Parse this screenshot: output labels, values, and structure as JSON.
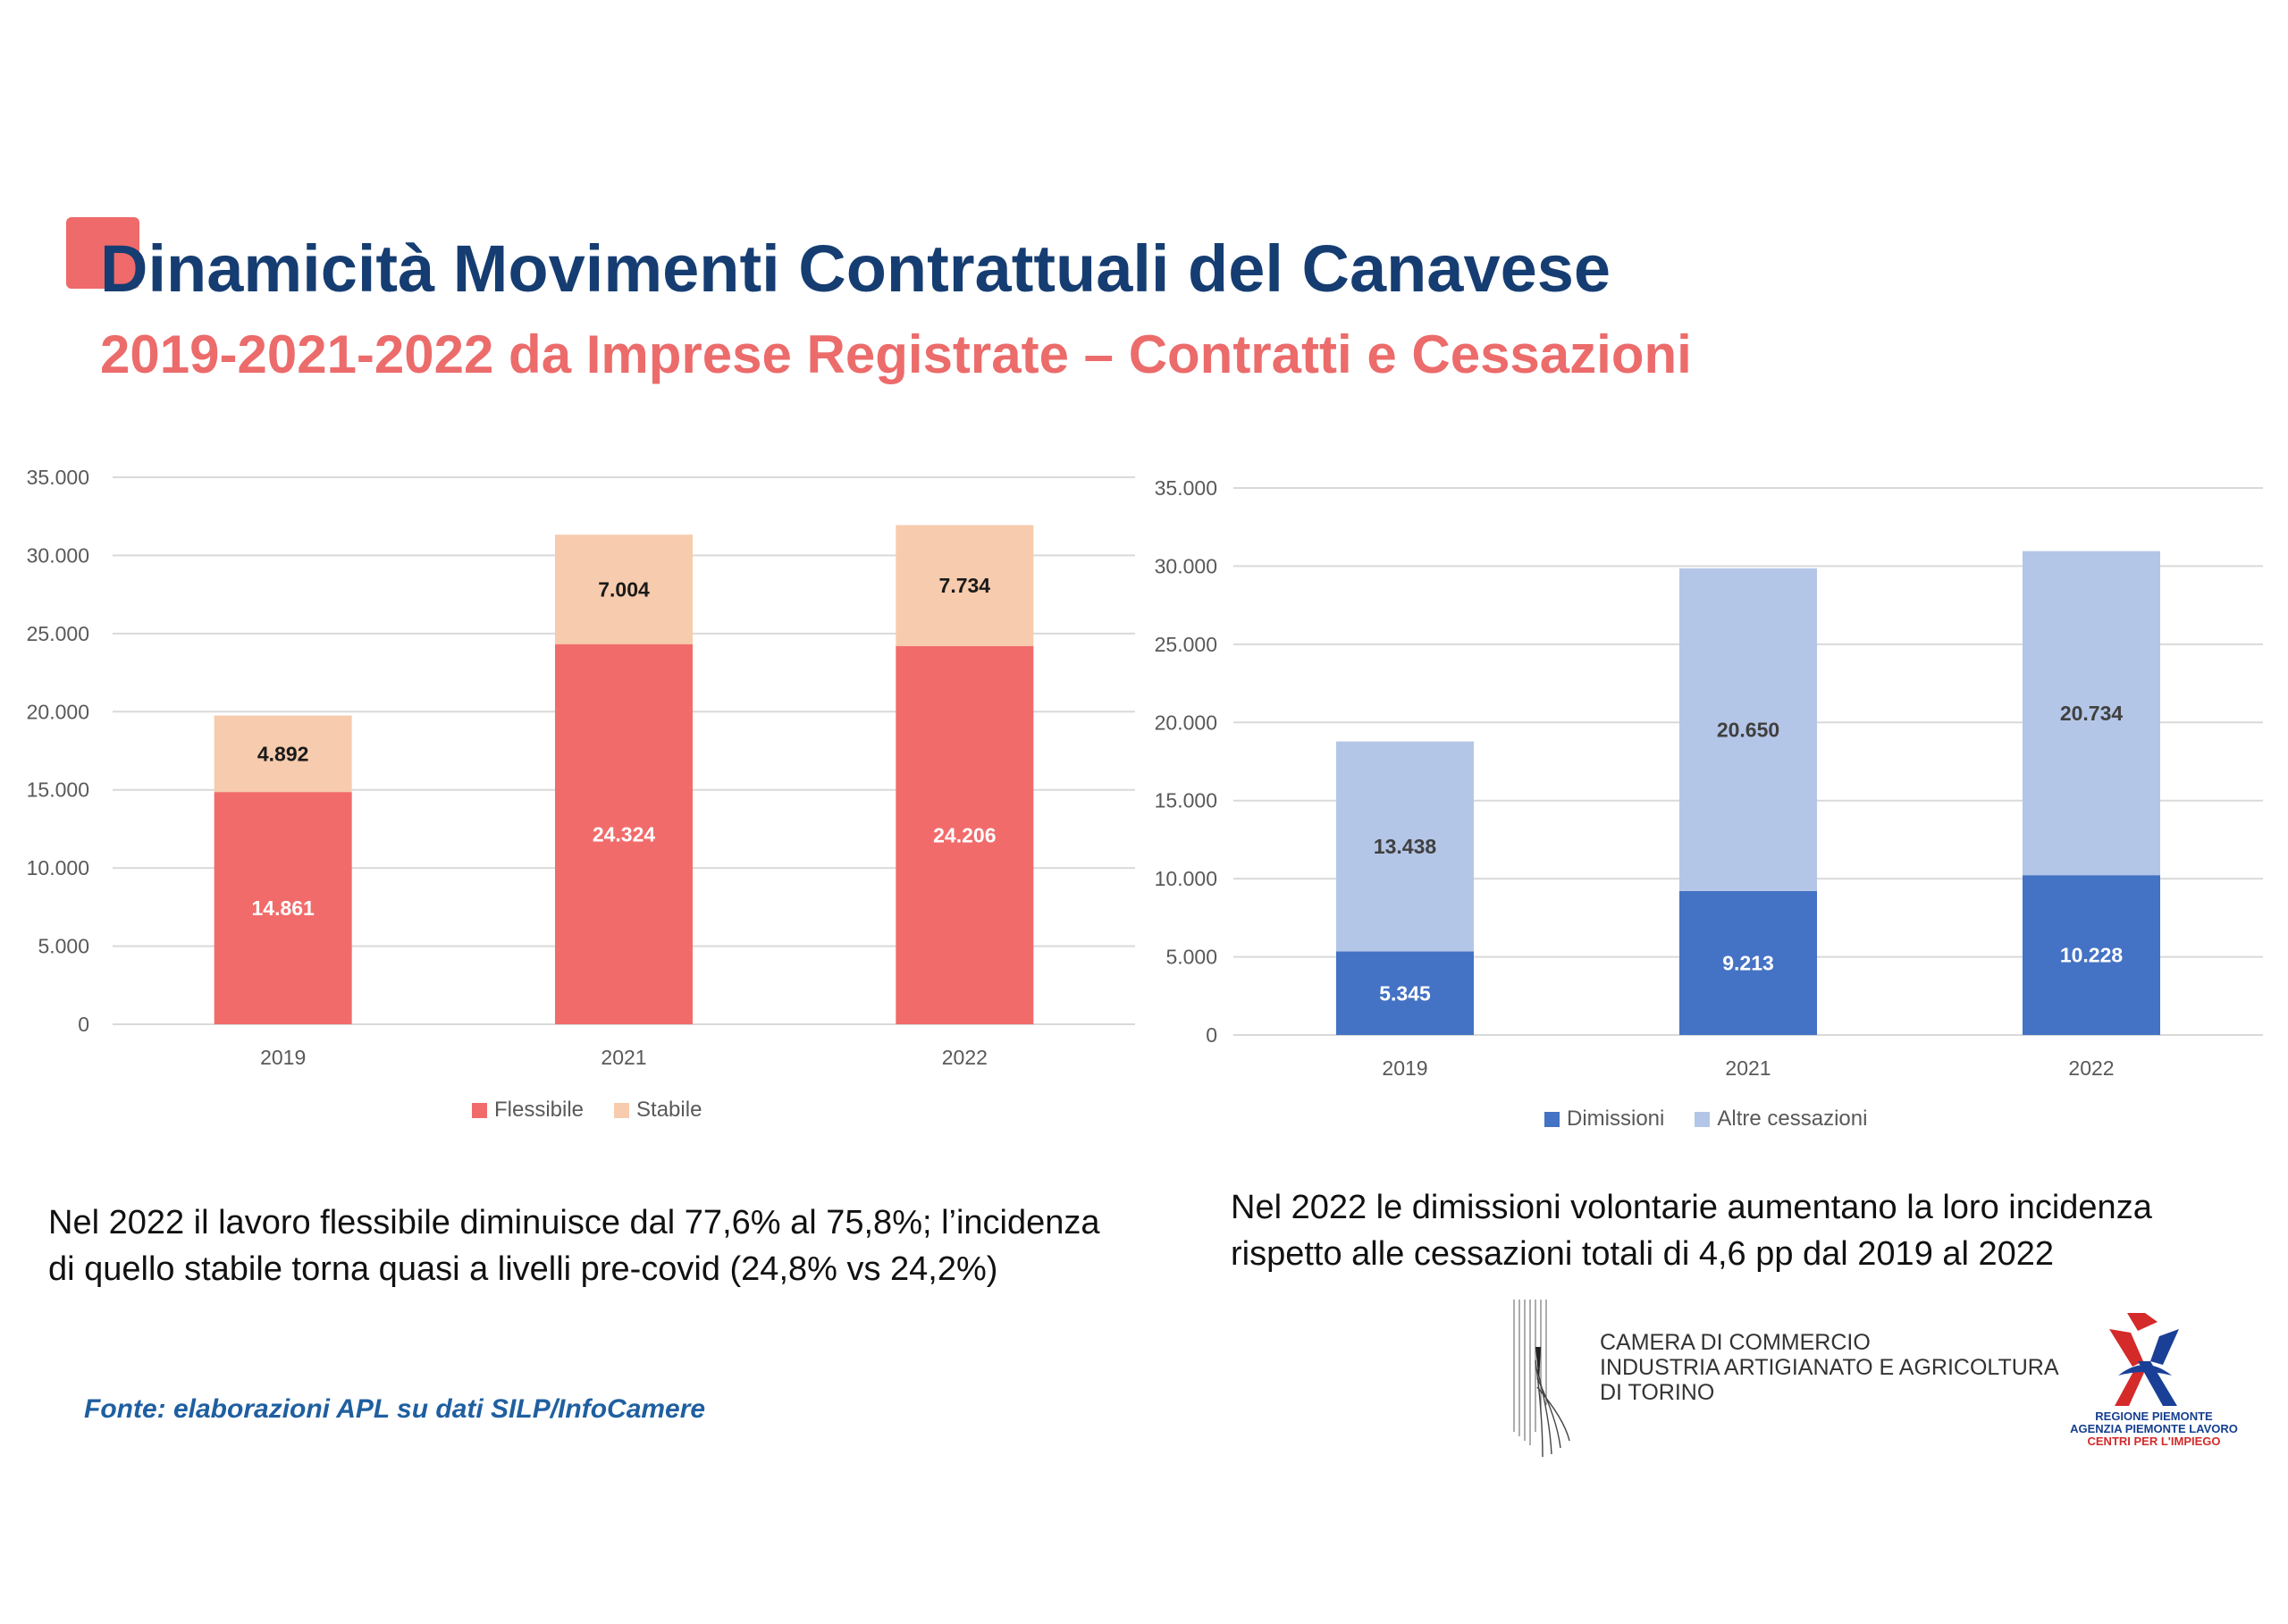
{
  "title": "Dinamicità Movimenti Contrattuali del Canavese",
  "subtitle": "2019-2021-2022 da Imprese Registrate – Contratti e Cessazioni",
  "colors": {
    "title": "#153d72",
    "subtitle": "#ec6b6b",
    "accent": "#ef6a6a",
    "flessibile": "#f26b6b",
    "stabile": "#f7cbad",
    "dimissioni": "#4472c4",
    "altre_cessazioni": "#b4c6e7",
    "source": "#1f5fa0"
  },
  "chart_data": [
    {
      "type": "bar",
      "stacked": true,
      "categories": [
        "2019",
        "2021",
        "2022"
      ],
      "series": [
        {
          "name": "Flessibile",
          "values": [
            14861,
            24324,
            24206
          ],
          "labels": [
            "14.861",
            "24.324",
            "24.206"
          ]
        },
        {
          "name": "Stabile",
          "values": [
            4892,
            7004,
            7734
          ],
          "labels": [
            "4.892",
            "7.004",
            "7.734"
          ]
        }
      ],
      "ylim": [
        0,
        35000
      ],
      "yticks": [
        "0",
        "5.000",
        "10.000",
        "15.000",
        "20.000",
        "25.000",
        "30.000",
        "35.000"
      ],
      "grid": true,
      "legend": "bottom",
      "title": "",
      "xlabel": "",
      "ylabel": ""
    },
    {
      "type": "bar",
      "stacked": true,
      "categories": [
        "2019",
        "2021",
        "2022"
      ],
      "series": [
        {
          "name": "Dimissioni",
          "values": [
            5345,
            9213,
            10228
          ],
          "labels": [
            "5.345",
            "9.213",
            "10.228"
          ]
        },
        {
          "name": "Altre cessazioni",
          "values": [
            13438,
            20650,
            20734
          ],
          "labels": [
            "13.438",
            "20.650",
            "20.734"
          ]
        }
      ],
      "ylim": [
        0,
        35000
      ],
      "yticks": [
        "0",
        "5.000",
        "10.000",
        "15.000",
        "20.000",
        "25.000",
        "30.000",
        "35.000"
      ],
      "grid": true,
      "legend": "bottom",
      "title": "",
      "xlabel": "",
      "ylabel": ""
    }
  ],
  "notes": {
    "left": "Nel 2022 il lavoro flessibile diminuisce dal 77,6% al 75,8%; l’incidenza di quello stabile torna quasi a livelli pre-covid (24,8% vs 24,2%)",
    "right": "Nel 2022 le dimissioni volontarie aumentano la loro incidenza rispetto alle cessazioni totali di 4,6 pp dal 2019 al 2022"
  },
  "source": "Fonte: elaborazioni APL su dati SILP/InfoCamere",
  "logos": {
    "camera": {
      "line1": "CAMERA DI COMMERCIO",
      "line2": "INDUSTRIA ARTIGIANATO E AGRICOLTURA",
      "line3": "DI TORINO"
    },
    "regione": {
      "line1": "REGIONE PIEMONTE",
      "line2": "AGENZIA PIEMONTE LAVORO",
      "line3": "CENTRI PER L'IMPIEGO"
    }
  }
}
